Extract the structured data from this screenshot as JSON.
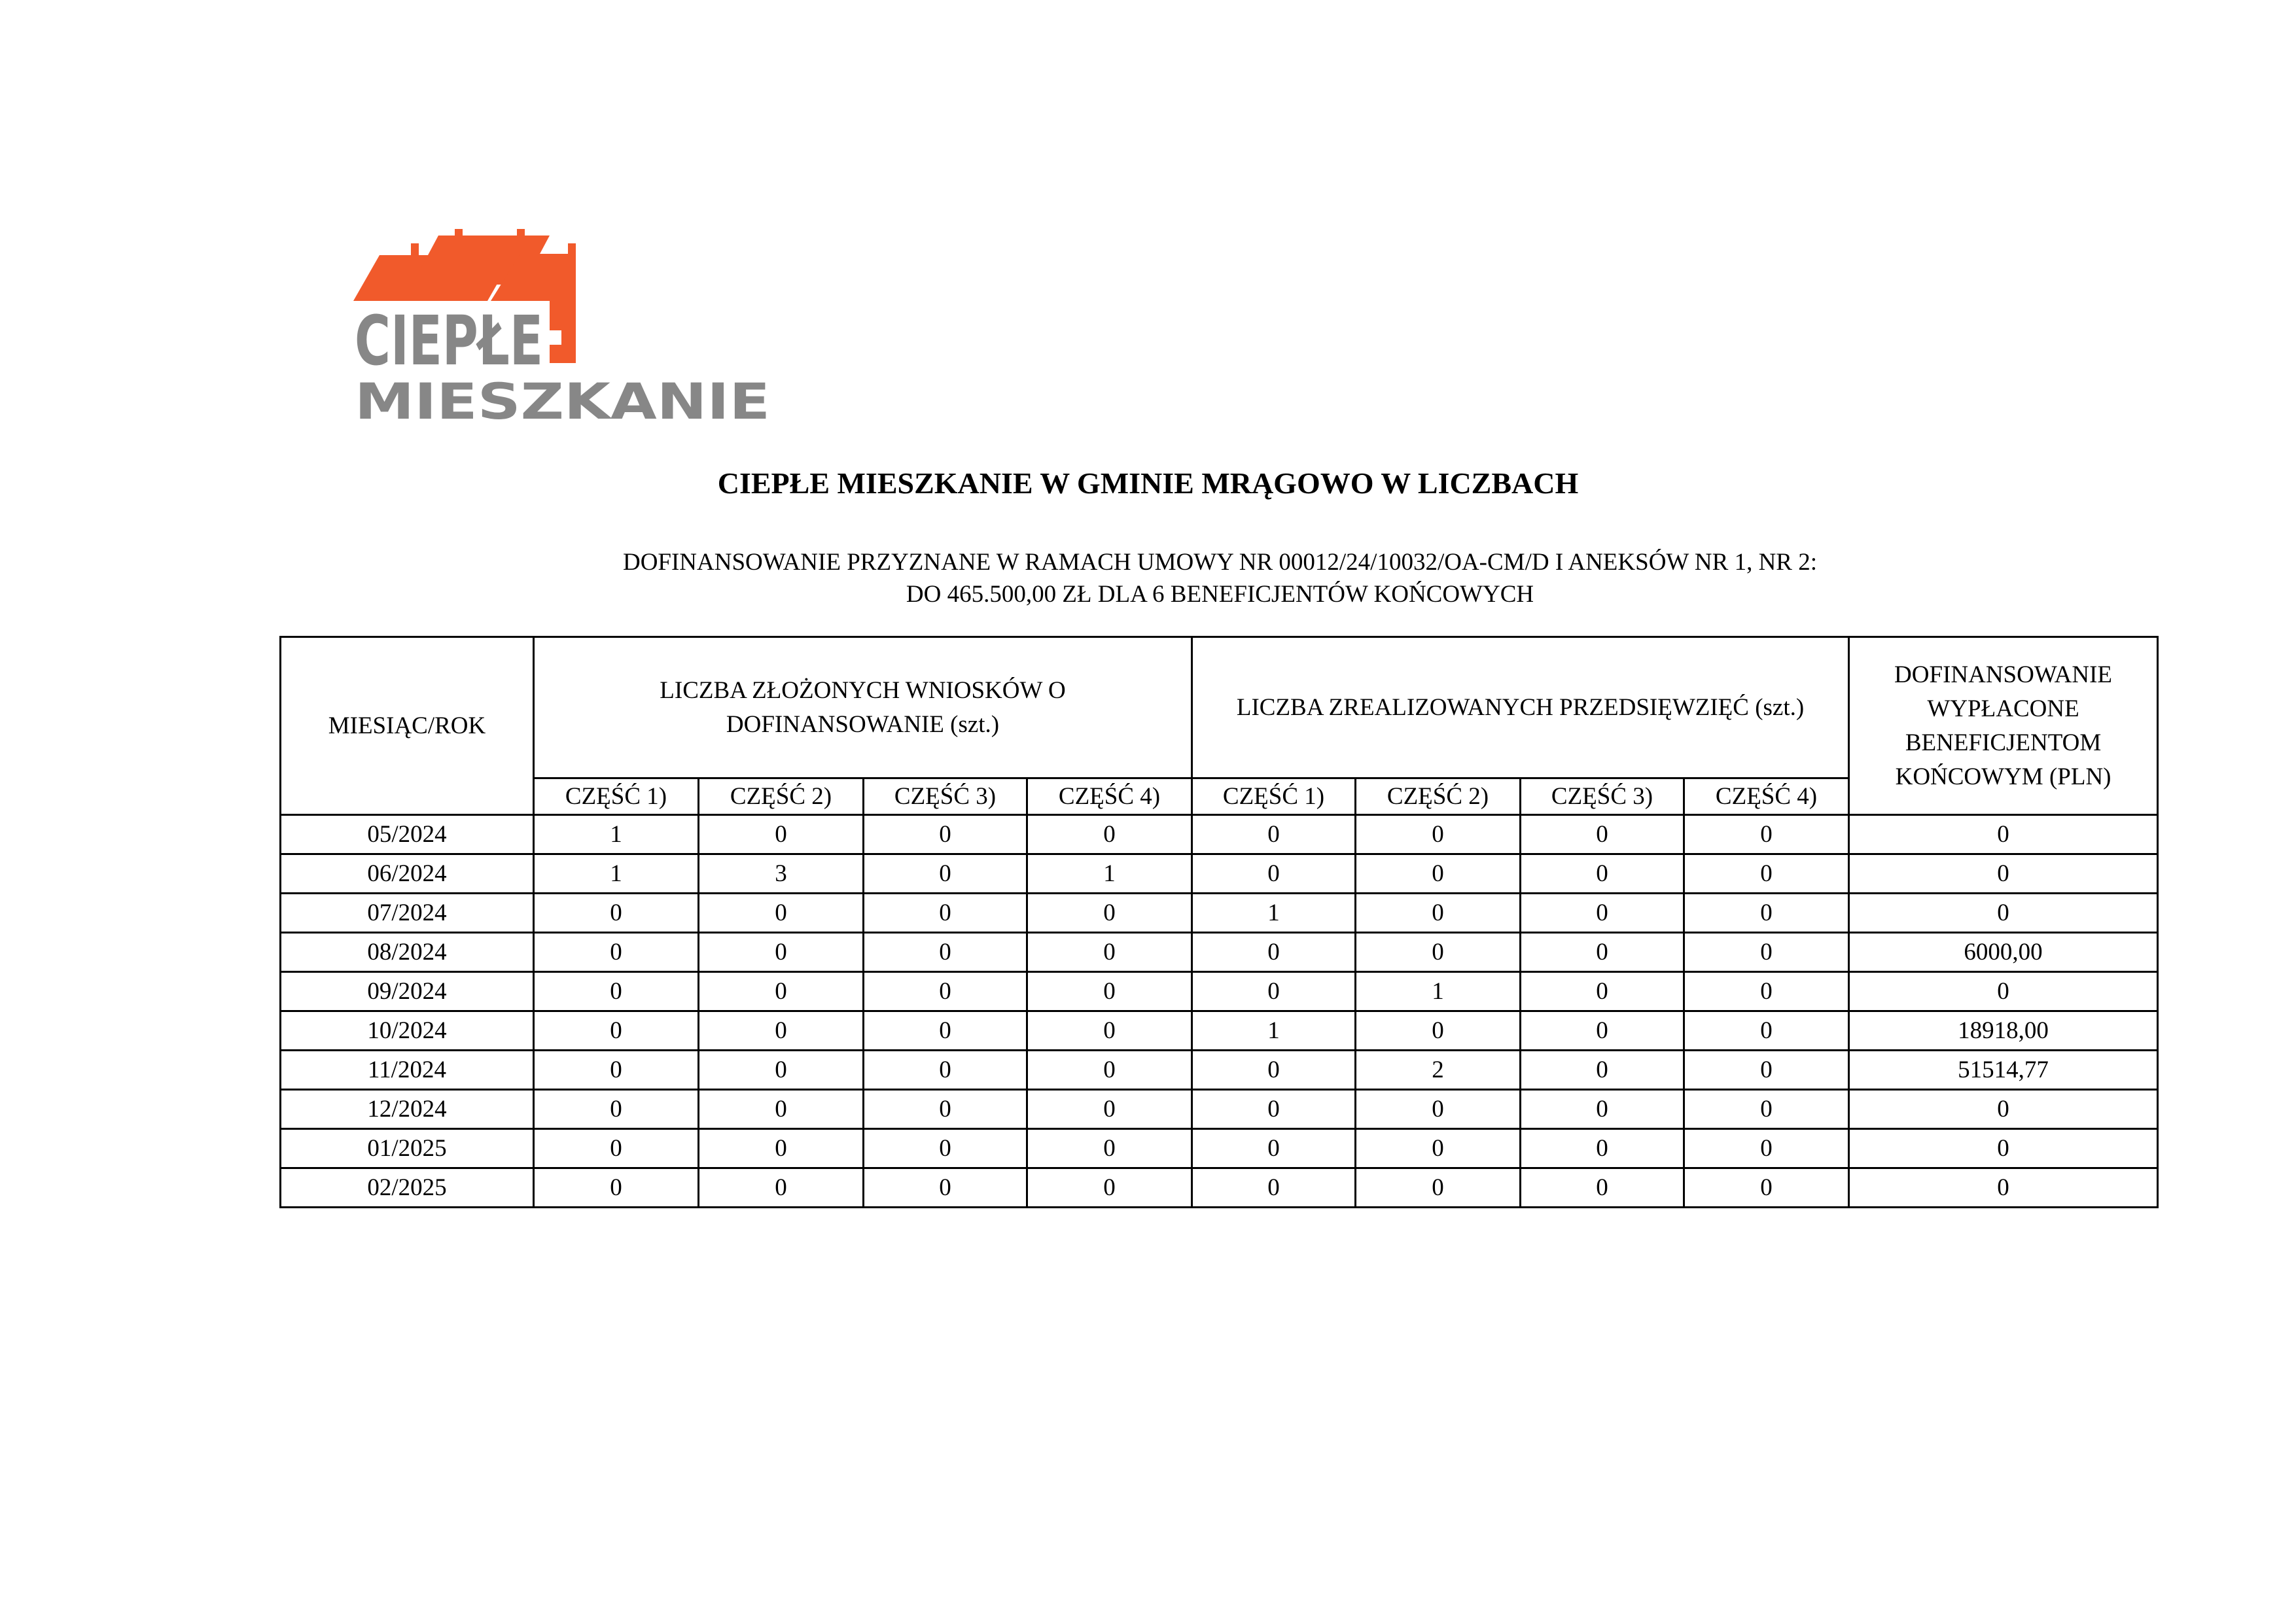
{
  "logo": {
    "line1": "CIEPŁE",
    "line2": "MIESZKANIE",
    "colors": {
      "orange": "#F15A2B",
      "gray": "#878787"
    }
  },
  "title": "CIEPŁE MIESZKANIE W GMINIE MRĄGOWO W LICZBACH",
  "subtitle": {
    "line1": "DOFINANSOWANIE PRZYZNANE W RAMACH UMOWY NR 00012/24/10032/OA-CM/D I ANEKSÓW NR 1, NR 2:",
    "line2": "DO 465.500,00 ZŁ DLA 6 BENEFICJENTÓW KOŃCOWYCH"
  },
  "table": {
    "headers": {
      "month": "MIESIĄC/ROK",
      "applications": "LICZBA ZŁOŻONYCH WNIOSKÓW O DOFINANSOWANIE (szt.)",
      "completed": "LICZBA ZREALIZOWANYCH PRZEDSIĘWZIĘĆ (szt.)",
      "paid": "DOFINANSOWANIE WYPŁACONE BENEFICJENTOM KOŃCOWYM (PLN)",
      "parts": [
        "CZĘŚĆ 1)",
        "CZĘŚĆ 2)",
        "CZĘŚĆ 3)",
        "CZĘŚĆ 4)"
      ]
    },
    "rows": [
      [
        "05/2024",
        "1",
        "0",
        "0",
        "0",
        "0",
        "0",
        "0",
        "0",
        "0"
      ],
      [
        "06/2024",
        "1",
        "3",
        "0",
        "1",
        "0",
        "0",
        "0",
        "0",
        "0"
      ],
      [
        "07/2024",
        "0",
        "0",
        "0",
        "0",
        "1",
        "0",
        "0",
        "0",
        "0"
      ],
      [
        "08/2024",
        "0",
        "0",
        "0",
        "0",
        "0",
        "0",
        "0",
        "0",
        "6000,00"
      ],
      [
        "09/2024",
        "0",
        "0",
        "0",
        "0",
        "0",
        "1",
        "0",
        "0",
        "0"
      ],
      [
        "10/2024",
        "0",
        "0",
        "0",
        "0",
        "1",
        "0",
        "0",
        "0",
        "18918,00"
      ],
      [
        "11/2024",
        "0",
        "0",
        "0",
        "0",
        "0",
        "2",
        "0",
        "0",
        "51514,77"
      ],
      [
        "12/2024",
        "0",
        "0",
        "0",
        "0",
        "0",
        "0",
        "0",
        "0",
        "0"
      ],
      [
        "01/2025",
        "0",
        "0",
        "0",
        "0",
        "0",
        "0",
        "0",
        "0",
        "0"
      ],
      [
        "02/2025",
        "0",
        "0",
        "0",
        "0",
        "0",
        "0",
        "0",
        "0",
        "0"
      ]
    ]
  }
}
